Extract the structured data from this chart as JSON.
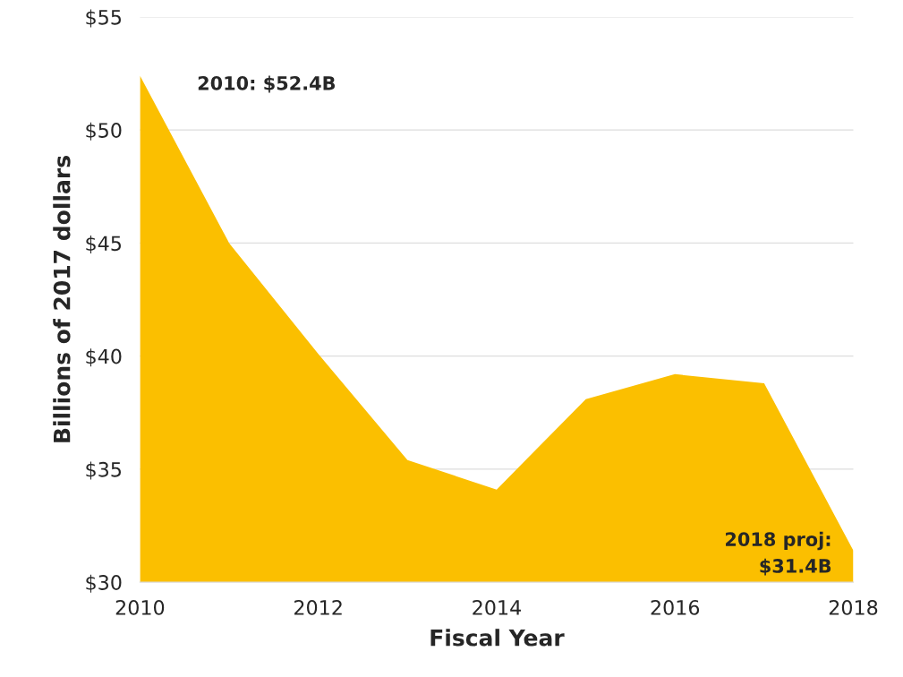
{
  "chart_data": {
    "type": "area",
    "xlabel": "Fiscal Year",
    "ylabel": "Billions of 2017 dollars",
    "x": [
      2010,
      2011,
      2012,
      2013,
      2014,
      2015,
      2016,
      2017,
      2018
    ],
    "series": [
      {
        "color": "#fbbf00",
        "values": [
          52.4,
          45.0,
          40.1,
          35.4,
          34.1,
          38.1,
          39.2,
          38.8,
          31.4
        ]
      }
    ],
    "xlim": [
      2010,
      2018
    ],
    "xticks": [
      2010,
      2012,
      2014,
      2016,
      2018
    ],
    "ylim": [
      30,
      55
    ],
    "yticks": [
      {
        "value": 30,
        "label": "$30"
      },
      {
        "value": 35,
        "label": "$35"
      },
      {
        "value": 40,
        "label": "$40"
      },
      {
        "value": 45,
        "label": "$45"
      },
      {
        "value": 50,
        "label": "$50"
      },
      {
        "value": 55,
        "label": "$55"
      }
    ],
    "grid": "y",
    "legend": false,
    "annotations": [
      "2010: $52.4B",
      "2018 proj:\n$31.4B"
    ]
  }
}
